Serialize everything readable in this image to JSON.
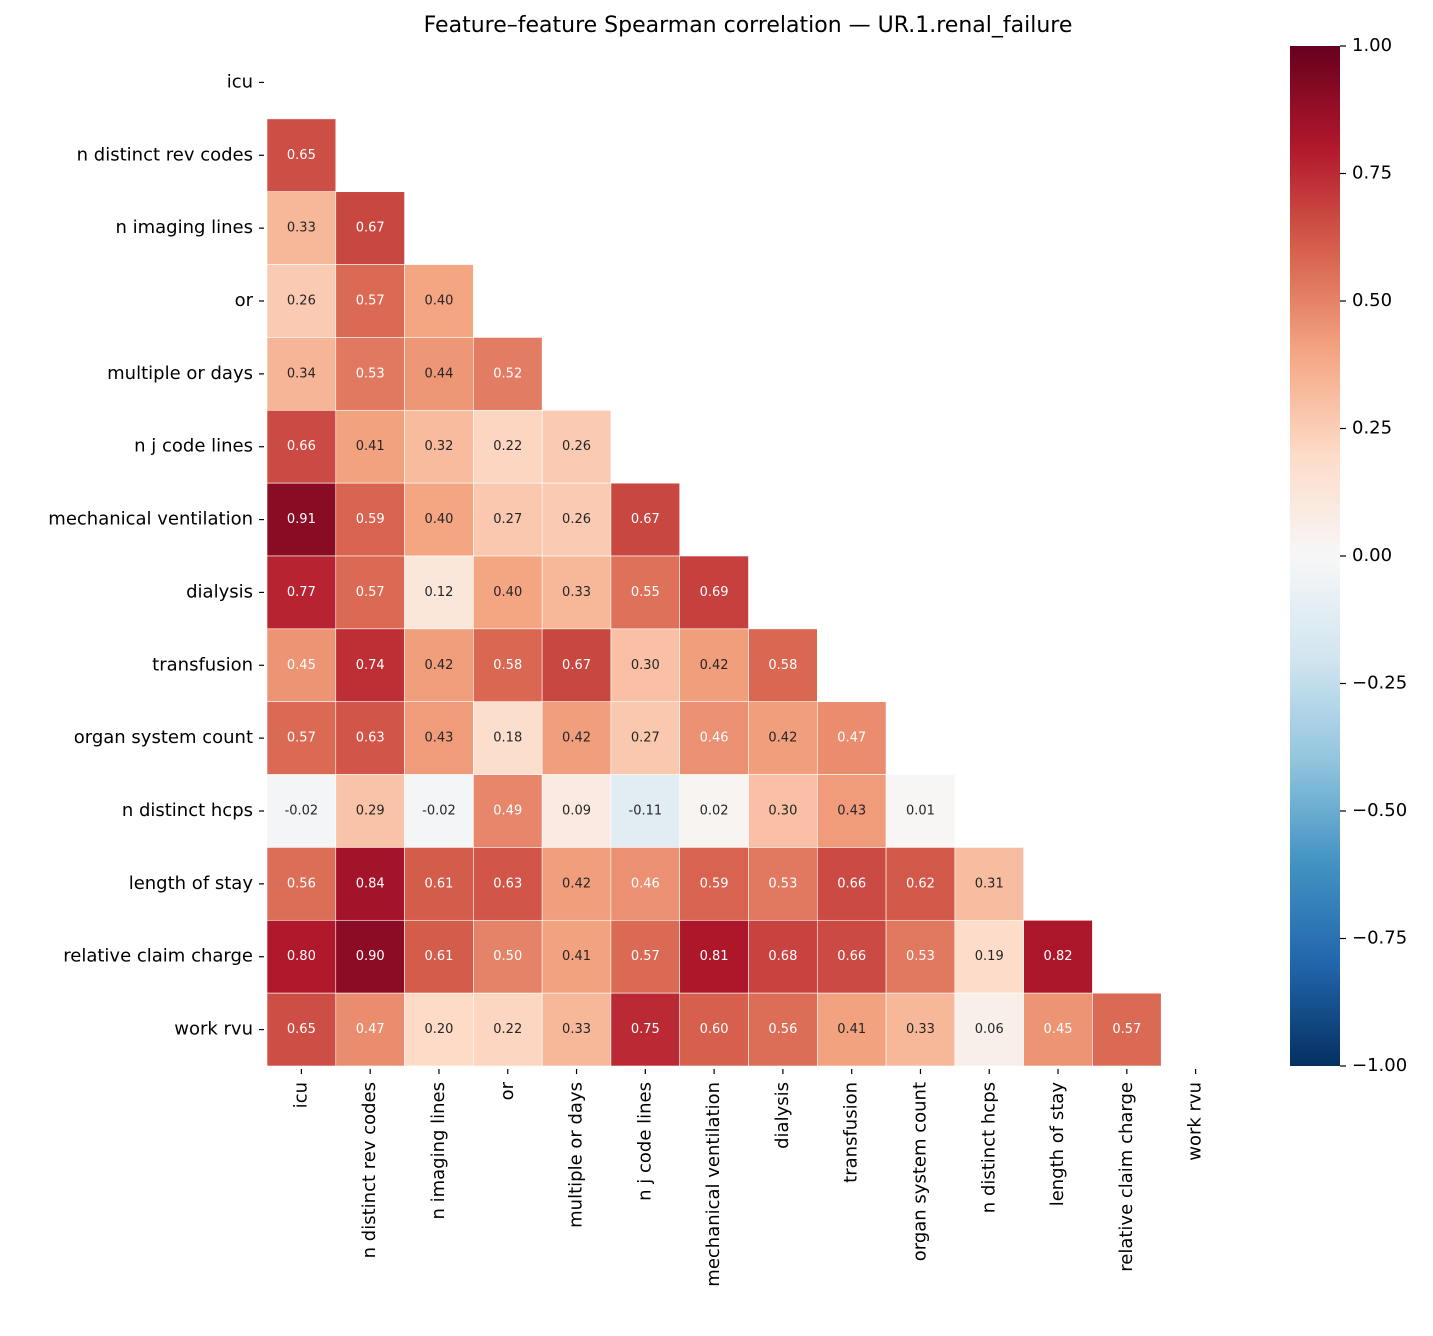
{
  "chart_data": {
    "type": "heatmap",
    "title": "Feature–feature Spearman correlation — UR.1.renal_failure",
    "categories": [
      "icu",
      "n distinct rev codes",
      "n imaging lines",
      "or",
      "multiple or days",
      "n j code lines",
      "mechanical ventilation",
      "dialysis",
      "transfusion",
      "organ system count",
      "n distinct hcps",
      "length of stay",
      "relative claim charge",
      "work rvu"
    ],
    "values": [
      [],
      [
        0.65
      ],
      [
        0.33,
        0.67
      ],
      [
        0.26,
        0.57,
        0.4
      ],
      [
        0.34,
        0.53,
        0.44,
        0.52
      ],
      [
        0.66,
        0.41,
        0.32,
        0.22,
        0.26
      ],
      [
        0.91,
        0.59,
        0.4,
        0.27,
        0.26,
        0.67
      ],
      [
        0.77,
        0.57,
        0.12,
        0.4,
        0.33,
        0.55,
        0.69
      ],
      [
        0.45,
        0.74,
        0.42,
        0.58,
        0.67,
        0.3,
        0.42,
        0.58
      ],
      [
        0.57,
        0.63,
        0.43,
        0.18,
        0.42,
        0.27,
        0.46,
        0.42,
        0.47
      ],
      [
        -0.02,
        0.29,
        -0.02,
        0.49,
        0.09,
        -0.11,
        0.02,
        0.3,
        0.43,
        0.01
      ],
      [
        0.56,
        0.84,
        0.61,
        0.63,
        0.42,
        0.46,
        0.59,
        0.53,
        0.66,
        0.62,
        0.31
      ],
      [
        0.8,
        0.9,
        0.61,
        0.5,
        0.41,
        0.57,
        0.81,
        0.68,
        0.66,
        0.53,
        0.19,
        0.82
      ],
      [
        0.65,
        0.47,
        0.2,
        0.22,
        0.33,
        0.75,
        0.6,
        0.56,
        0.41,
        0.33,
        0.06,
        0.45,
        0.57
      ]
    ],
    "value_labels": [
      [],
      [
        "0.65"
      ],
      [
        "0.33",
        "0.67"
      ],
      [
        "0.26",
        "0.57",
        "0.40"
      ],
      [
        "0.34",
        "0.53",
        "0.44",
        "0.52"
      ],
      [
        "0.66",
        "0.41",
        "0.32",
        "0.22",
        "0.26"
      ],
      [
        "0.91",
        "0.59",
        "0.40",
        "0.27",
        "0.26",
        "0.67"
      ],
      [
        "0.77",
        "0.57",
        "0.12",
        "0.40",
        "0.33",
        "0.55",
        "0.69"
      ],
      [
        "0.45",
        "0.74",
        "0.42",
        "0.58",
        "0.67",
        "0.30",
        "0.42",
        "0.58"
      ],
      [
        "0.57",
        "0.63",
        "0.43",
        "0.18",
        "0.42",
        "0.27",
        "0.46",
        "0.42",
        "0.47"
      ],
      [
        "-0.02",
        "0.29",
        "-0.02",
        "0.49",
        "0.09",
        "-0.11",
        "0.02",
        "0.30",
        "0.43",
        "0.01"
      ],
      [
        "0.56",
        "0.84",
        "0.61",
        "0.63",
        "0.42",
        "0.46",
        "0.59",
        "0.53",
        "0.66",
        "0.62",
        "0.31"
      ],
      [
        "0.80",
        "0.90",
        "0.61",
        "0.50",
        "0.41",
        "0.57",
        "0.81",
        "0.68",
        "0.66",
        "0.53",
        "0.19",
        "0.82"
      ],
      [
        "0.65",
        "0.47",
        "0.20",
        "0.22",
        "0.33",
        "0.75",
        "0.60",
        "0.56",
        "0.41",
        "0.33",
        "0.06",
        "0.45",
        "0.57"
      ]
    ],
    "zlim": [
      -1,
      1
    ],
    "zticks": [
      {
        "value": -1,
        "label": "−1.00"
      },
      {
        "value": -0.75,
        "label": "−0.75"
      },
      {
        "value": -0.5,
        "label": "−0.50"
      },
      {
        "value": -0.25,
        "label": "−0.25"
      },
      {
        "value": 0,
        "label": "0.00"
      },
      {
        "value": 0.25,
        "label": "0.25"
      },
      {
        "value": 0.5,
        "label": "0.50"
      },
      {
        "value": 0.75,
        "label": "0.75"
      },
      {
        "value": 1,
        "label": "1.00"
      }
    ],
    "colorscale": [
      "#053061",
      "#2166ac",
      "#4393c3",
      "#92c5de",
      "#d1e5f0",
      "#f7f7f7",
      "#fddbc7",
      "#f4a582",
      "#d6604d",
      "#b2182b",
      "#67001f"
    ]
  }
}
